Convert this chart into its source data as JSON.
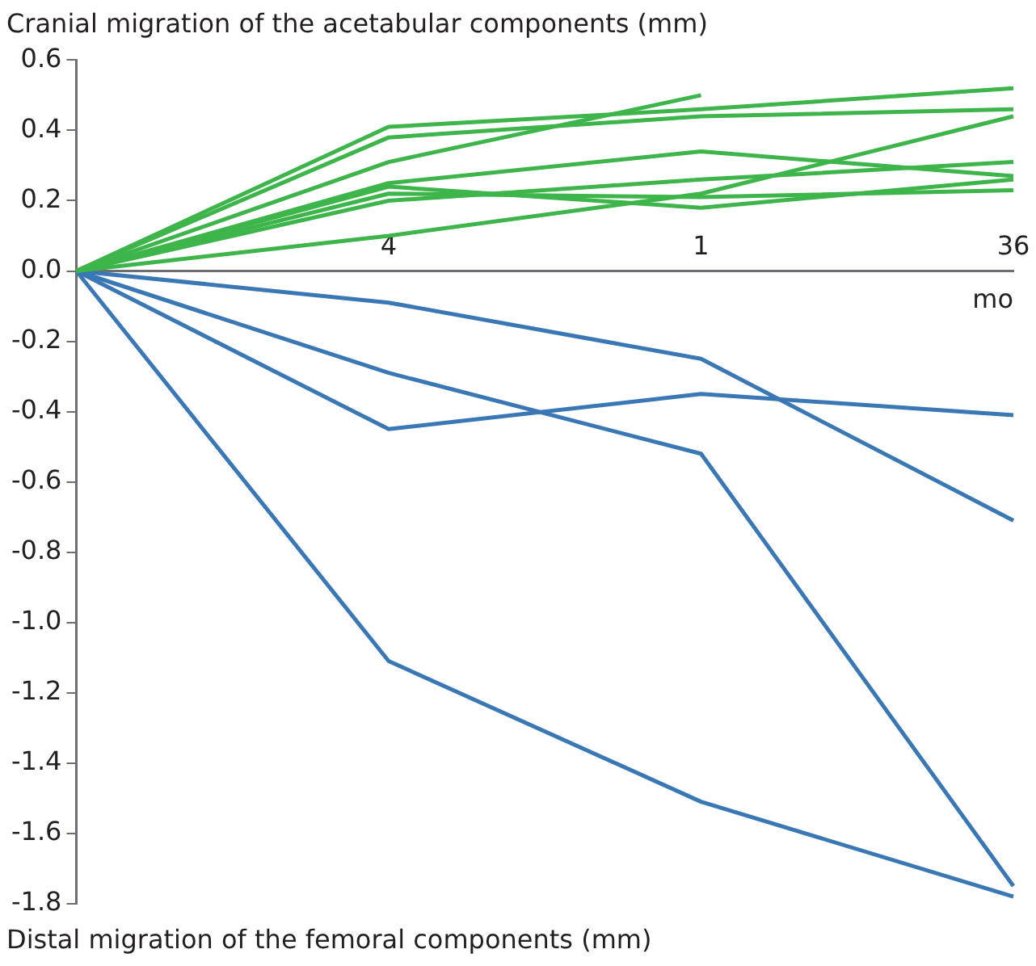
{
  "chart_data": {
    "type": "line",
    "title": "Cranial migration of the acetabular components (mm)",
    "annotations": [
      "Distal migration of the femoral components (mm)"
    ],
    "xlabel": "mo",
    "categories": [
      null,
      "4",
      "1",
      "36"
    ],
    "ylim": [
      -1.8,
      0.6
    ],
    "yticks": [
      {
        "value": -1.8,
        "label": "-1.8"
      },
      {
        "value": -1.6,
        "label": "-1.6"
      },
      {
        "value": -1.4,
        "label": "-1.4"
      },
      {
        "value": -1.2,
        "label": "-1.2"
      },
      {
        "value": -1.0,
        "label": "-1.0"
      },
      {
        "value": -0.8,
        "label": "-0.8"
      },
      {
        "value": -0.6,
        "label": "-0.6"
      },
      {
        "value": -0.4,
        "label": "-0.4"
      },
      {
        "value": -0.2,
        "label": "-0.2"
      },
      {
        "value": 0,
        "label": "0.0"
      },
      {
        "value": 0.2,
        "label": "0.2"
      },
      {
        "value": 0.4,
        "label": "0.4"
      },
      {
        "value": 0.6,
        "label": "0.6"
      }
    ],
    "grid": false,
    "legend": false,
    "marker": "none",
    "line_style": "solid",
    "series": [
      {
        "color": "#3db54a",
        "values": [
          0,
          0.41,
          0.46,
          0.52
        ]
      },
      {
        "color": "#3db54a",
        "values": [
          0,
          0.38,
          0.44,
          0.46
        ]
      },
      {
        "color": "#3db54a",
        "values": [
          0,
          0.31,
          0.5,
          null
        ]
      },
      {
        "color": "#3db54a",
        "values": [
          0,
          0.25,
          0.34,
          0.27
        ]
      },
      {
        "color": "#3db54a",
        "values": [
          0,
          0.24,
          0.18,
          0.26
        ]
      },
      {
        "color": "#3db54a",
        "values": [
          0,
          0.22,
          0.21,
          0.23
        ]
      },
      {
        "color": "#3db54a",
        "values": [
          0,
          0.2,
          0.26,
          0.31
        ]
      },
      {
        "color": "#3db54a",
        "values": [
          0,
          0.1,
          0.22,
          0.44
        ]
      },
      {
        "color": "#3a78b5",
        "values": [
          0,
          -0.09,
          -0.25,
          -0.71
        ]
      },
      {
        "color": "#3a78b5",
        "values": [
          0,
          -0.29,
          -0.52,
          -1.75
        ]
      },
      {
        "color": "#3a78b5",
        "values": [
          0,
          -0.45,
          -0.35,
          -0.41
        ]
      },
      {
        "color": "#3a78b5",
        "values": [
          0,
          -1.11,
          -1.51,
          -1.78
        ]
      }
    ]
  }
}
